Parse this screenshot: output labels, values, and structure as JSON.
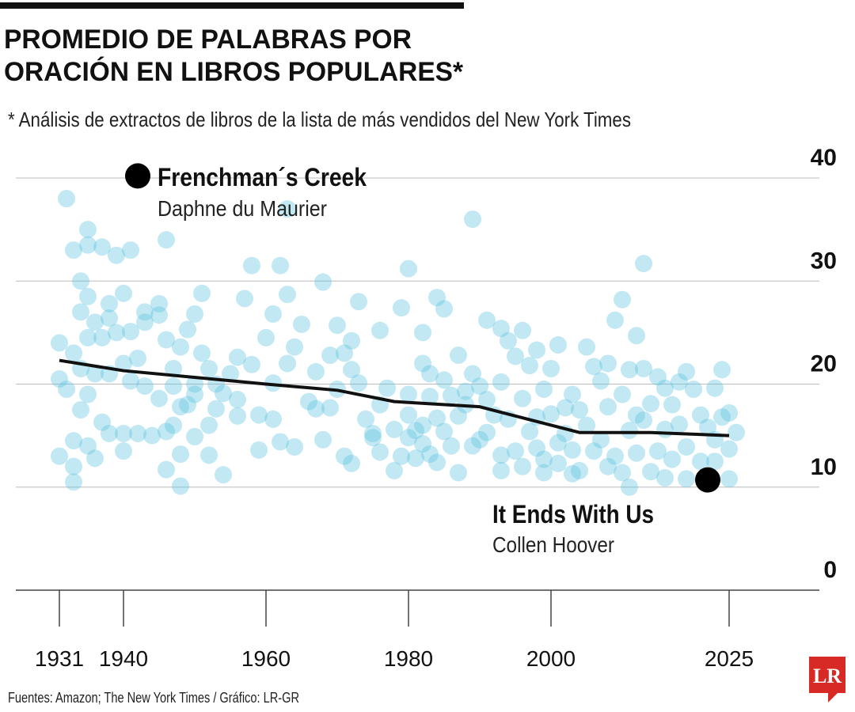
{
  "chart_data": {
    "type": "scatter",
    "title": [
      "PROMEDIO DE PALABRAS POR",
      "ORACIÓN EN LIBROS POPULARES*"
    ],
    "subtitle": "* Análisis de extractos de libros de la lista de más vendidos del New York Times",
    "source": "Fuentes: Amazon; The New York Times / Gráfico: LR-GR",
    "logo": "LR",
    "xlim": [
      1925,
      2037
    ],
    "xticks": [
      1931,
      1940,
      1960,
      1980,
      2000,
      2025
    ],
    "ylim": [
      0,
      40
    ],
    "yticks": [
      0,
      10,
      20,
      30,
      40
    ],
    "grid": true,
    "color": "#5cc3df",
    "x": [
      1931,
      1931,
      1931,
      1932,
      1932,
      1933,
      1933,
      1933,
      1933,
      1933,
      1934,
      1934,
      1934,
      1934,
      1935,
      1935,
      1935,
      1935,
      1935,
      1935,
      1936,
      1936,
      1936,
      1937,
      1937,
      1937,
      1938,
      1938,
      1938,
      1938,
      1939,
      1939,
      1940,
      1940,
      1940,
      1940,
      1941,
      1941,
      1941,
      1942,
      1942,
      1943,
      1943,
      1943,
      1944,
      1945,
      1945,
      1945,
      1946,
      1946,
      1946,
      1946,
      1947,
      1947,
      1947,
      1948,
      1948,
      1948,
      1948,
      1949,
      1949,
      1950,
      1950,
      1950,
      1950,
      1951,
      1951,
      1952,
      1952,
      1952,
      1953,
      1953,
      1954,
      1954,
      1955,
      1956,
      1956,
      1956,
      1957,
      1958,
      1958,
      1959,
      1959,
      1960,
      1961,
      1961,
      1961,
      1962,
      1962,
      1963,
      1963,
      1963,
      1964,
      1964,
      1965,
      1966,
      1967,
      1967,
      1968,
      1968,
      1969,
      1969,
      1970,
      1970,
      1971,
      1971,
      1972,
      1972,
      1972,
      1973,
      1973,
      1974,
      1975,
      1975,
      1976,
      1976,
      1976,
      1977,
      1978,
      1978,
      1979,
      1979,
      1980,
      1980,
      1980,
      1980,
      1981,
      1981,
      1982,
      1982,
      1982,
      1982,
      1983,
      1983,
      1983,
      1984,
      1984,
      1984,
      1985,
      1985,
      1985,
      1986,
      1986,
      1987,
      1987,
      1987,
      1988,
      1988,
      1989,
      1989,
      1989,
      1990,
      1990,
      1991,
      1991,
      1991,
      1992,
      1993,
      1993,
      1993,
      1993,
      1994,
      1994,
      1995,
      1995,
      1996,
      1996,
      1996,
      1997,
      1997,
      1998,
      1998,
      1998,
      1999,
      1999,
      1999,
      2000,
      2000,
      2001,
      2001,
      2001,
      2002,
      2002,
      2003,
      2003,
      2003,
      2004,
      2004,
      2005,
      2005,
      2006,
      2006,
      2007,
      2007,
      2008,
      2008,
      2008,
      2009,
      2009,
      2010,
      2010,
      2010,
      2011,
      2011,
      2011,
      2012,
      2012,
      2012,
      2013,
      2013,
      2013,
      2014,
      2014,
      2015,
      2015,
      2016,
      2016,
      2016,
      2017,
      2017,
      2018,
      2018,
      2019,
      2019,
      2019,
      2020,
      2021,
      2021,
      2022,
      2023,
      2023,
      2023,
      2024,
      2024,
      2025,
      2025,
      2025,
      2026
    ],
    "values": [
      20.5,
      13,
      24,
      38,
      19.5,
      33,
      14.5,
      10.5,
      12,
      23,
      30,
      27,
      17.5,
      21.5,
      35,
      28.5,
      33.5,
      24.5,
      19,
      14,
      12.8,
      21,
      26,
      33.3,
      24.5,
      16.3,
      27.8,
      26.4,
      15.2,
      21,
      32.5,
      25,
      28.8,
      22,
      15.2,
      13.5,
      33,
      25.1,
      20.3,
      15.2,
      22.5,
      27,
      26,
      19.8,
      15,
      27.8,
      26.7,
      18.6,
      34,
      24.3,
      15.4,
      11.7,
      21.5,
      19.8,
      16,
      10.1,
      23.6,
      13.2,
      17.8,
      25.3,
      18,
      26.8,
      20,
      14.9,
      19,
      28.8,
      23,
      13.1,
      21.5,
      16,
      20,
      17.6,
      11.2,
      19.1,
      21,
      22.6,
      18.5,
      16.9,
      28.3,
      31.5,
      21.9,
      13.6,
      17,
      24.5,
      26.8,
      20.1,
      16.6,
      31.5,
      14.4,
      37,
      28.7,
      22,
      13.9,
      23.6,
      25.8,
      18.3,
      17.6,
      21.2,
      29.9,
      14.6,
      22.8,
      17.7,
      25.7,
      19.5,
      23,
      13,
      12.3,
      24.2,
      21.4,
      28,
      20.1,
      16.6,
      15.2,
      14.8,
      25.2,
      13.4,
      18,
      19.6,
      11.6,
      15.6,
      27.4,
      13,
      31.2,
      19,
      14.8,
      17,
      15.5,
      12.8,
      25,
      22,
      16,
      14.2,
      21,
      18.8,
      13.2,
      28.4,
      16.7,
      12.4,
      27.3,
      20.4,
      15.4,
      18.9,
      14,
      11.4,
      22.8,
      16.9,
      18,
      19.3,
      36,
      21,
      14,
      19.8,
      14.6,
      26.2,
      15.3,
      18.5,
      17,
      25.4,
      20.2,
      13.1,
      11.6,
      24.2,
      16.6,
      22.7,
      13.5,
      25.2,
      18.6,
      12,
      21.8,
      15.4,
      23.3,
      16.8,
      13.8,
      19.5,
      12.7,
      11.4,
      21.5,
      17.1,
      23.8,
      14.3,
      12.3,
      17.7,
      15.2,
      19,
      11.3,
      13.6,
      17.5,
      11.6,
      23.6,
      16,
      21.7,
      13.5,
      20.3,
      14.6,
      22,
      17.8,
      12,
      26.2,
      13,
      28.2,
      19,
      11.4,
      21.4,
      15.5,
      10,
      24.7,
      17,
      13.3,
      31.7,
      21.5,
      16.5,
      18.1,
      11.5,
      20.7,
      13.5,
      19.6,
      10.9,
      15.6,
      18,
      12.7,
      20.2,
      16.1,
      21.2,
      13.9,
      10.8,
      19.5,
      17,
      12.5,
      15.8,
      19.6,
      14.6,
      12.5,
      21.4,
      16.8,
      17.2,
      13.7,
      10.8,
      15.3
    ],
    "trend_x": [
      1931,
      1940,
      1960,
      1970,
      1978,
      1990,
      2004,
      2014,
      2025
    ],
    "trend_values": [
      22.3,
      21.3,
      20.0,
      19.4,
      18.3,
      17.8,
      15.3,
      15.3,
      15.0
    ],
    "annotations": [
      {
        "label": "Frenchman´s Creek",
        "sublabel": "Daphne du Maurier",
        "x": 1942,
        "value": 40.2
      },
      {
        "label": "It Ends With Us",
        "sublabel": "Collen Hoover",
        "x": 2022,
        "value": 10.7
      }
    ]
  }
}
